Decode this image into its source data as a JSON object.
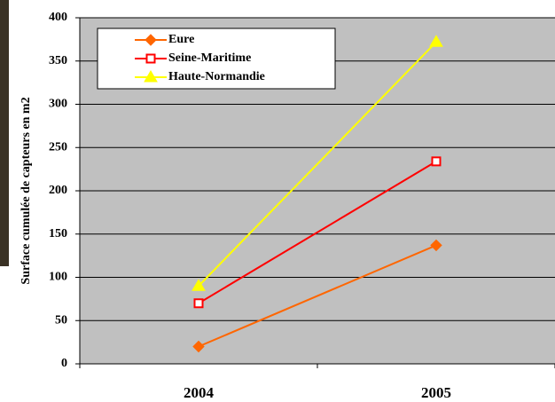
{
  "chart_data": {
    "type": "line",
    "y_label": "Surface cumulée de capteurs en m2",
    "categories": [
      "2004",
      "2005"
    ],
    "series": [
      {
        "name": "Eure",
        "color": "#ff6600",
        "marker": "diamond",
        "values": [
          20,
          137
        ]
      },
      {
        "name": "Seine-Maritime",
        "color": "#ff0000",
        "marker": "square",
        "values": [
          70,
          234
        ]
      },
      {
        "name": "Haute-Normandie",
        "color": "#ffff00",
        "marker": "triangle",
        "values": [
          90,
          372
        ]
      }
    ],
    "ylim": [
      0,
      400
    ],
    "yticks": [
      0,
      50,
      100,
      150,
      200,
      250,
      300,
      350,
      400
    ],
    "grid": true,
    "legend": "upper left"
  }
}
